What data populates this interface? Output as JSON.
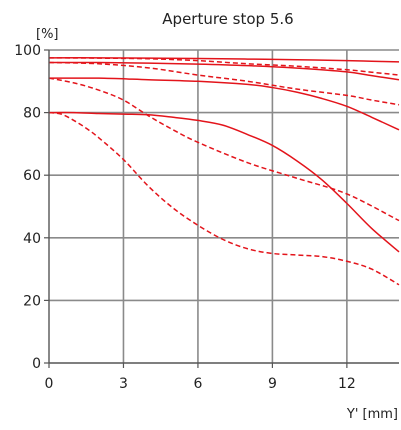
{
  "chart_data": {
    "type": "line",
    "title": "Aperture stop 5.6",
    "ylabel": "[%]",
    "xlabel": "Y' [mm]",
    "xlim": [
      0,
      14.1
    ],
    "ylim": [
      0,
      100
    ],
    "xticks": [
      0,
      3,
      6,
      9,
      12
    ],
    "yticks": [
      0,
      20,
      40,
      60,
      80,
      100
    ],
    "grid": true,
    "color": "#e3141b",
    "series": [
      {
        "style": "solid",
        "x": [
          0,
          2,
          4,
          6,
          8,
          10,
          12,
          13,
          14.1
        ],
        "y": [
          97.5,
          97.5,
          97.4,
          97.3,
          97.1,
          96.9,
          96.6,
          96.4,
          96.2
        ]
      },
      {
        "style": "dashed",
        "x": [
          0,
          2,
          4,
          6,
          8,
          10,
          12,
          13,
          14.1
        ],
        "y": [
          97.5,
          97.4,
          97.2,
          96.6,
          95.6,
          94.8,
          93.7,
          92.9,
          92
        ]
      },
      {
        "style": "solid",
        "x": [
          0,
          2,
          4,
          6,
          8,
          10,
          12,
          13,
          14.1
        ],
        "y": [
          96,
          96,
          95.8,
          95.5,
          95,
          94.2,
          93,
          91.8,
          90.5
        ]
      },
      {
        "style": "dashed",
        "x": [
          0,
          2,
          4,
          6,
          8,
          10,
          12,
          13,
          14.1
        ],
        "y": [
          96,
          95.6,
          94.3,
          92,
          90,
          87.5,
          85.5,
          84,
          82.5
        ]
      },
      {
        "style": "solid",
        "x": [
          0,
          2,
          4,
          6,
          8,
          9,
          10,
          11,
          12,
          13,
          14.1
        ],
        "y": [
          91,
          91,
          90.5,
          90,
          89,
          88,
          86.5,
          84.5,
          82,
          78.5,
          74.5
        ]
      },
      {
        "style": "dashed",
        "x": [
          0,
          1,
          2,
          3,
          4,
          5,
          6,
          8,
          10,
          12,
          14.1
        ],
        "y": [
          91,
          89.5,
          87.2,
          84,
          79,
          74.5,
          70.5,
          64,
          59,
          54,
          45.5
        ]
      },
      {
        "style": "solid",
        "x": [
          0,
          1,
          2,
          3,
          4,
          5,
          6,
          7,
          8,
          9,
          10,
          11,
          12,
          13,
          14.1
        ],
        "y": [
          80,
          80,
          79.7,
          79.5,
          79.3,
          78.5,
          77.5,
          76,
          73,
          69.5,
          64.5,
          58.5,
          51,
          43,
          35.5
        ]
      },
      {
        "style": "dashed",
        "x": [
          0,
          0.5,
          1,
          1.5,
          2,
          3,
          4,
          5,
          6,
          7,
          8,
          9,
          10,
          11,
          12,
          13,
          14.1
        ],
        "y": [
          80,
          79.5,
          77.5,
          75,
          72,
          65,
          56.5,
          49.5,
          44,
          39.5,
          36.5,
          35,
          34.5,
          34,
          32.5,
          30,
          25
        ]
      }
    ]
  }
}
